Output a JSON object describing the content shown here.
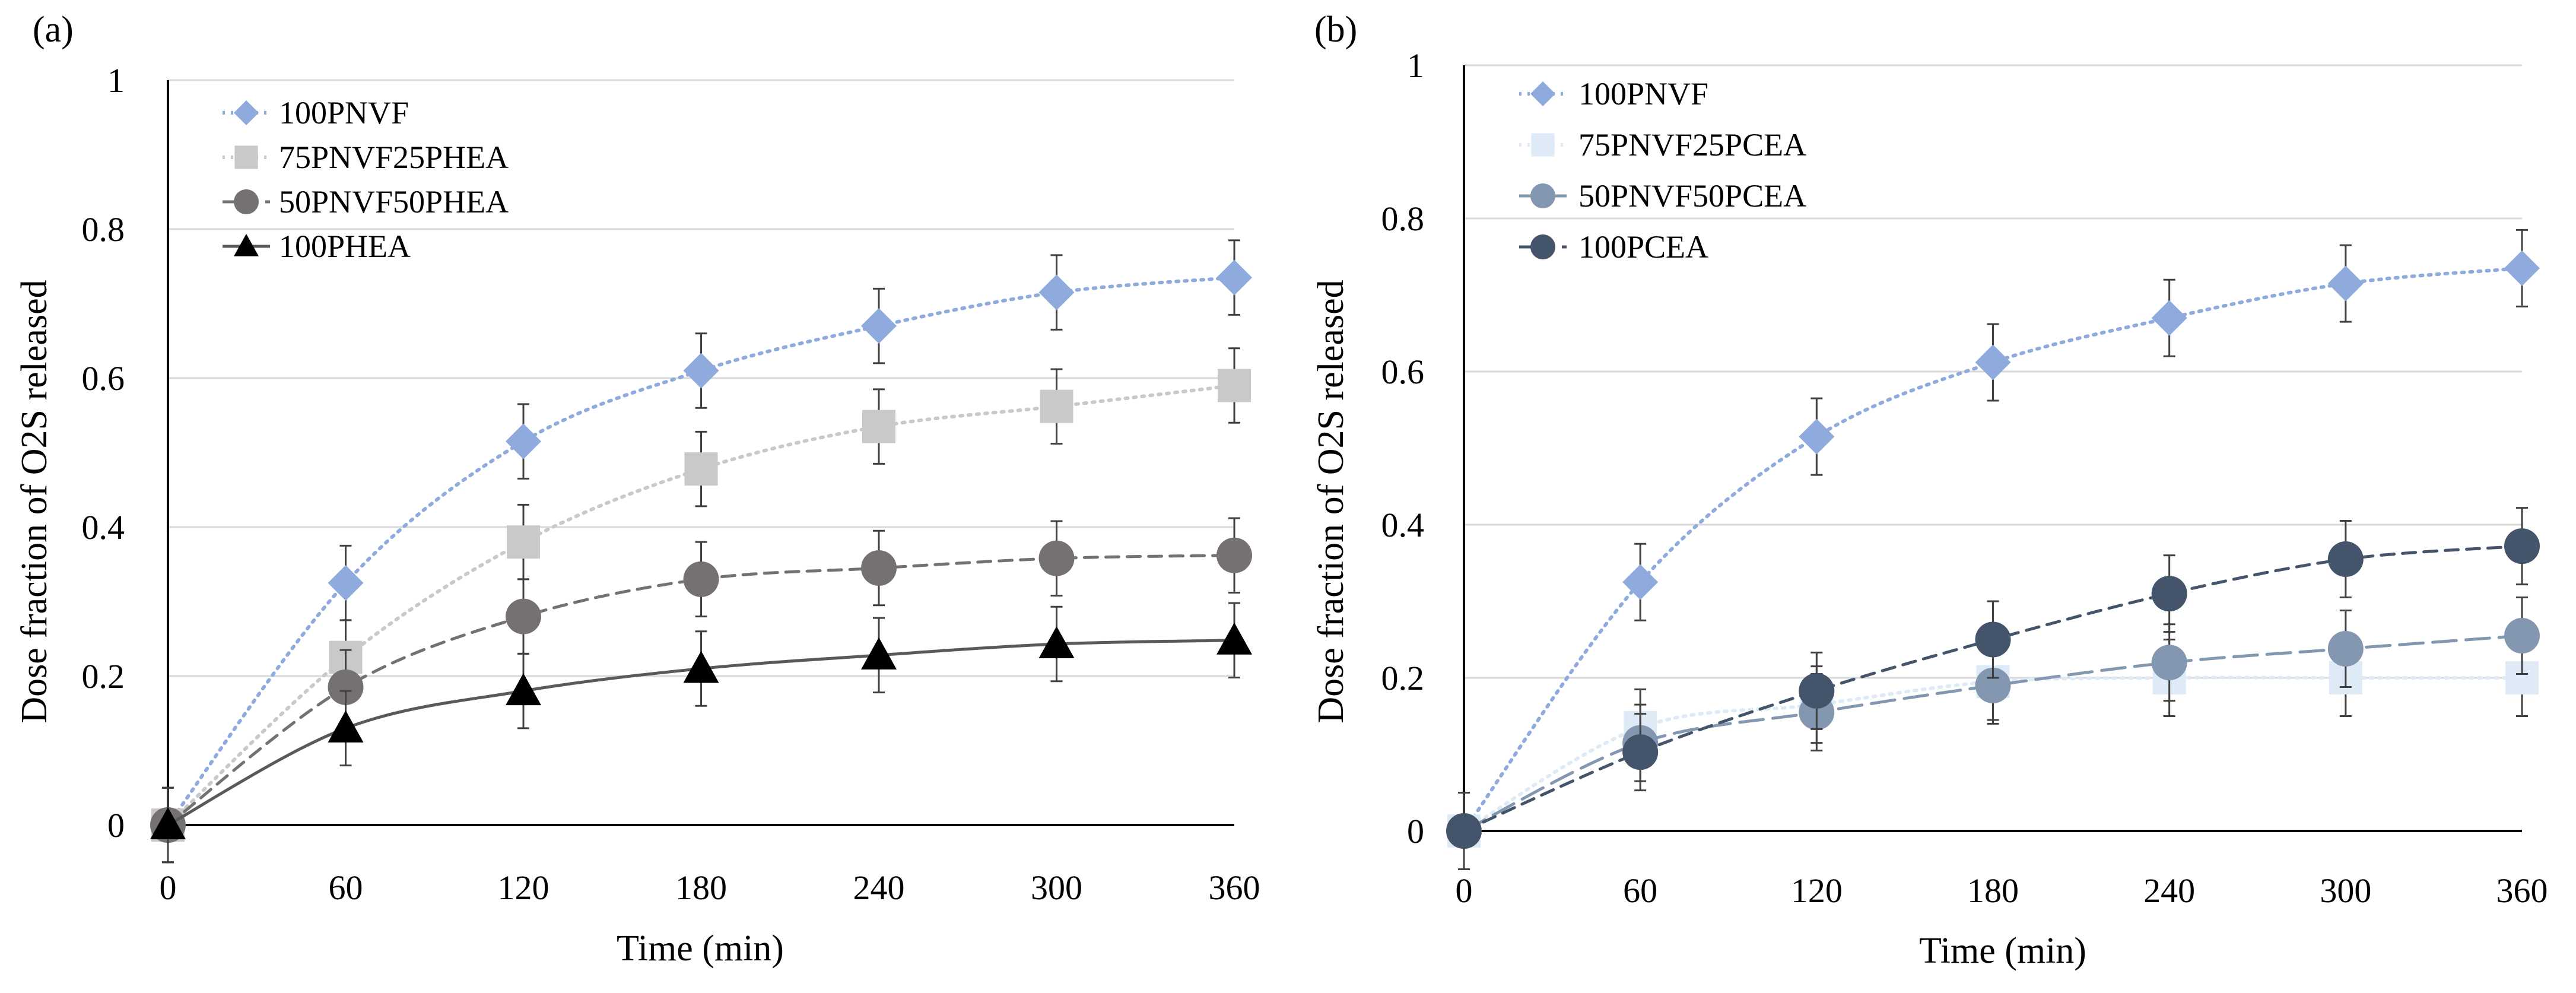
{
  "figure": {
    "panel_labels": [
      "(a)",
      "(b)"
    ]
  },
  "chart_data": [
    {
      "type": "line",
      "panel_label": "(a)",
      "xlabel": "Time (min)",
      "ylabel": "Dose fraction of O2S released",
      "x": [
        0,
        60,
        120,
        180,
        240,
        300,
        360
      ],
      "xticks": [
        "0",
        "60",
        "120",
        "180",
        "240",
        "300",
        "360"
      ],
      "yticks": [
        "0",
        "0.2",
        "0.4",
        "0.6",
        "0.8",
        "1"
      ],
      "xlim": [
        0,
        360
      ],
      "ylim": [
        0,
        1
      ],
      "grid": "horizontal",
      "legend_position": "top-left",
      "series": [
        {
          "name": "100PNVF",
          "values": [
            0,
            0.325,
            0.515,
            0.61,
            0.67,
            0.715,
            0.735
          ],
          "error": [
            0.05,
            0.05,
            0.05,
            0.05,
            0.05,
            0.05,
            0.05
          ],
          "color": "#8faadc",
          "marker": "diamond",
          "line": "dotted"
        },
        {
          "name": "75PNVF25PHEA",
          "values": [
            0,
            0.225,
            0.38,
            0.478,
            0.535,
            0.562,
            0.59
          ],
          "error": [
            0.05,
            0.05,
            0.05,
            0.05,
            0.05,
            0.05,
            0.05
          ],
          "color": "#c9c9c9",
          "marker": "square",
          "line": "dotted"
        },
        {
          "name": "50PNVF50PHEA",
          "values": [
            0,
            0.185,
            0.28,
            0.33,
            0.345,
            0.358,
            0.362
          ],
          "error": [
            0.05,
            0.05,
            0.05,
            0.05,
            0.05,
            0.05,
            0.05
          ],
          "color": "#767171",
          "marker": "circle",
          "line": "dashed"
        },
        {
          "name": "100PHEA",
          "values": [
            0,
            0.13,
            0.18,
            0.21,
            0.228,
            0.243,
            0.248
          ],
          "error": [
            0.05,
            0.05,
            0.05,
            0.05,
            0.05,
            0.05,
            0.05
          ],
          "color": "#000000",
          "line_color": "#595959",
          "marker": "triangle",
          "line": "solid"
        }
      ]
    },
    {
      "type": "line",
      "panel_label": "(b)",
      "xlabel": "Time (min)",
      "ylabel": "Dose fraction of O2S released",
      "x": [
        0,
        60,
        120,
        180,
        240,
        300,
        360
      ],
      "xticks": [
        "0",
        "60",
        "120",
        "180",
        "240",
        "300",
        "360"
      ],
      "yticks": [
        "0",
        "0.2",
        "0.4",
        "0.6",
        "0.8",
        "1"
      ],
      "xlim": [
        0,
        360
      ],
      "ylim": [
        0,
        1
      ],
      "grid": "horizontal",
      "legend_position": "top-left",
      "series": [
        {
          "name": "100PNVF",
          "values": [
            0,
            0.325,
            0.515,
            0.612,
            0.67,
            0.715,
            0.735
          ],
          "error": [
            0.05,
            0.05,
            0.05,
            0.05,
            0.05,
            0.05,
            0.05
          ],
          "color": "#8faadc",
          "marker": "diamond",
          "line": "dotted"
        },
        {
          "name": "75PNVF25PCEA",
          "values": [
            0,
            0.135,
            0.165,
            0.195,
            0.2,
            0.2,
            0.2
          ],
          "error": [
            0.05,
            0.05,
            0.05,
            0.05,
            0.05,
            0.05,
            0.05
          ],
          "color": "#deebf7",
          "marker": "square",
          "line": "dotted"
        },
        {
          "name": "50PNVF50PCEA",
          "values": [
            0,
            0.115,
            0.155,
            0.19,
            0.22,
            0.238,
            0.255
          ],
          "error": [
            0.05,
            0.05,
            0.05,
            0.05,
            0.05,
            0.05,
            0.05
          ],
          "color": "#8497b0",
          "marker": "circle",
          "line": "longdash"
        },
        {
          "name": "100PCEA",
          "values": [
            0,
            0.103,
            0.183,
            0.25,
            0.31,
            0.355,
            0.372
          ],
          "error": [
            0.05,
            0.05,
            0.05,
            0.05,
            0.05,
            0.05,
            0.05
          ],
          "color": "#44546a",
          "marker": "circle",
          "line": "dashed"
        }
      ]
    }
  ]
}
